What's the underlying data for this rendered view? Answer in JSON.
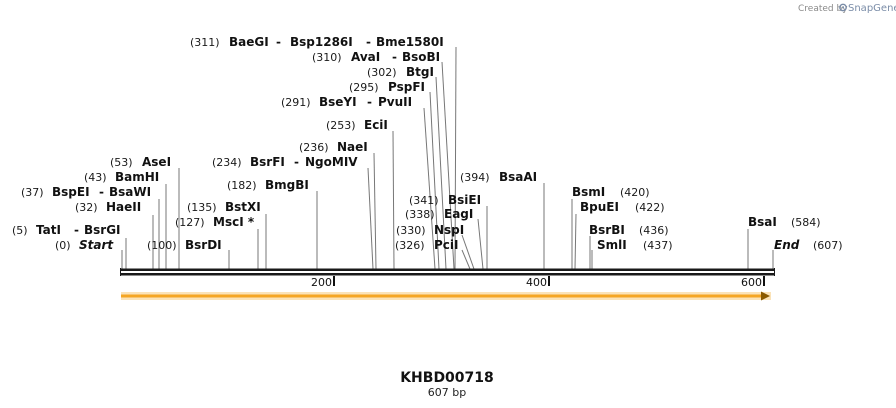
{
  "credit": {
    "prefix": "Created by",
    "brand": "SnapGene"
  },
  "map": {
    "name": "KHBD00718",
    "length_label": "607 bp",
    "length": 607,
    "ticks": [
      "200",
      "400",
      "600"
    ],
    "tick_values": [
      200,
      400,
      600
    ],
    "start_label": {
      "pos": "(0)",
      "name": "Start"
    },
    "end_label": {
      "pos": "(607)",
      "name": "End"
    },
    "sites": [
      {
        "pos": "(5)",
        "names": [
          "TatI",
          "BsrGI"
        ],
        "bp": 5
      },
      {
        "pos": "(32)",
        "names": [
          "HaeII"
        ],
        "bp": 32
      },
      {
        "pos": "(37)",
        "names": [
          "BspEI",
          "BsaWI"
        ],
        "bp": 37
      },
      {
        "pos": "(43)",
        "names": [
          "BamHI"
        ],
        "bp": 43
      },
      {
        "pos": "(53)",
        "names": [
          "AseI"
        ],
        "bp": 53
      },
      {
        "pos": "(100)",
        "names": [
          "BsrDI"
        ],
        "bp": 100
      },
      {
        "pos": "(127)",
        "names": [
          "MscI *"
        ],
        "bp": 127
      },
      {
        "pos": "(135)",
        "names": [
          "BstXI"
        ],
        "bp": 135
      },
      {
        "pos": "(182)",
        "names": [
          "BmgBI"
        ],
        "bp": 182
      },
      {
        "pos": "(234)",
        "names": [
          "BsrFI",
          "NgoMIV"
        ],
        "bp": 234
      },
      {
        "pos": "(236)",
        "names": [
          "NaeI"
        ],
        "bp": 236
      },
      {
        "pos": "(253)",
        "names": [
          "EciI"
        ],
        "bp": 253
      },
      {
        "pos": "(291)",
        "names": [
          "BseYI",
          "PvuII"
        ],
        "bp": 291
      },
      {
        "pos": "(295)",
        "names": [
          "PspFI"
        ],
        "bp": 295
      },
      {
        "pos": "(302)",
        "names": [
          "BtgI"
        ],
        "bp": 302
      },
      {
        "pos": "(310)",
        "names": [
          "AvaI",
          "BsoBI"
        ],
        "bp": 310
      },
      {
        "pos": "(311)",
        "names": [
          "BaeGI",
          "Bsp1286I",
          "Bme1580I"
        ],
        "bp": 311
      },
      {
        "pos": "(326)",
        "names": [
          "PciI"
        ],
        "bp": 326
      },
      {
        "pos": "(330)",
        "names": [
          "NspI"
        ],
        "bp": 330
      },
      {
        "pos": "(338)",
        "names": [
          "EagI"
        ],
        "bp": 338
      },
      {
        "pos": "(341)",
        "names": [
          "BsiEI"
        ],
        "bp": 341
      },
      {
        "pos": "(394)",
        "names": [
          "BsaAI"
        ],
        "bp": 394
      },
      {
        "pos": "(420)",
        "names": [
          "BsmI"
        ],
        "bp": 420
      },
      {
        "pos": "(422)",
        "names": [
          "BpuEI"
        ],
        "bp": 422
      },
      {
        "pos": "(436)",
        "names": [
          "BsrBI"
        ],
        "bp": 436
      },
      {
        "pos": "(437)",
        "names": [
          "SmlI"
        ],
        "bp": 437
      },
      {
        "pos": "(584)",
        "names": [
          "BsaI"
        ],
        "bp": 584
      }
    ]
  },
  "colors": {
    "backbone": "#1a1a1a",
    "feature_fill": "#f5a623",
    "feature_glow": "#fbe3b8",
    "feature_arrow": "#8a5a00",
    "leader": "#777777"
  }
}
